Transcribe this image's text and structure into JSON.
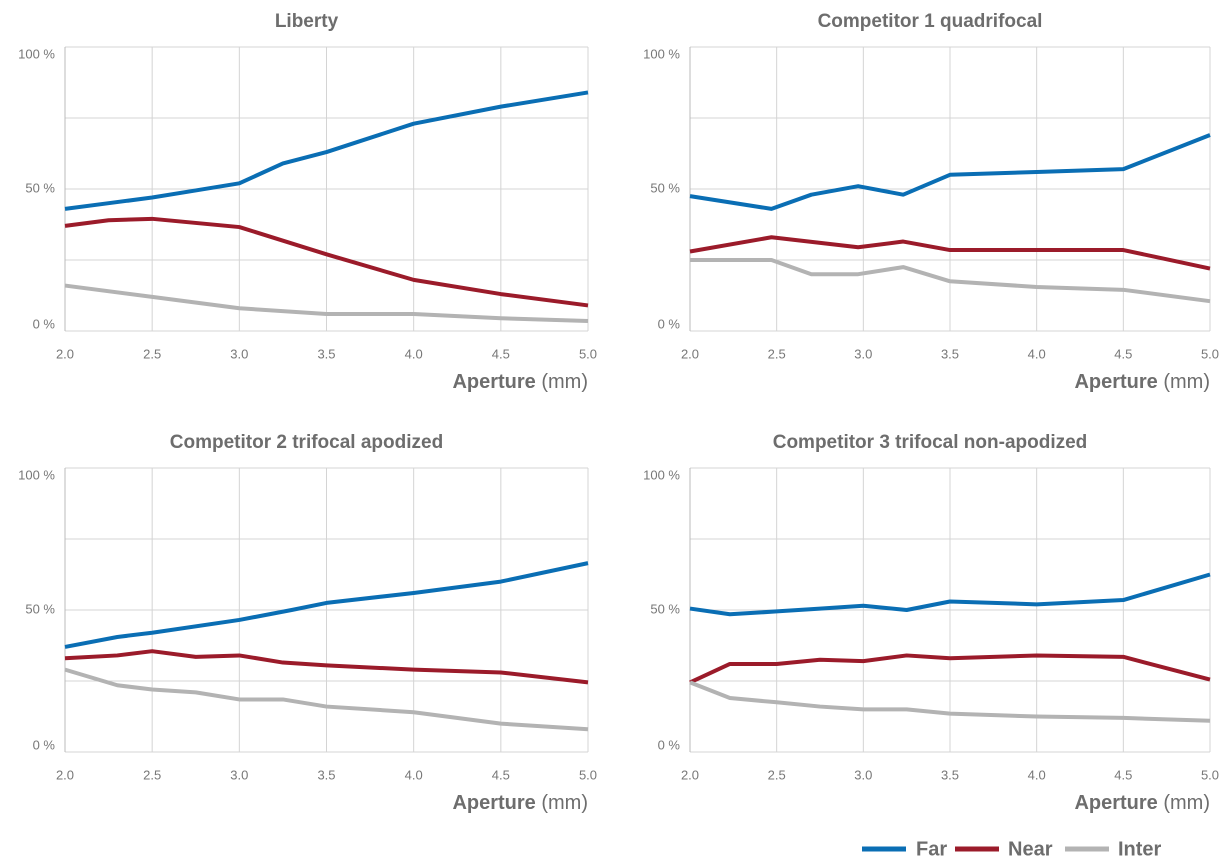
{
  "chart_data": [
    {
      "type": "line",
      "title": "Liberty",
      "x_label": "Aperture (mm)",
      "xlim": [
        2.0,
        5.0
      ],
      "ylim": [
        0,
        100
      ],
      "grid": true,
      "xticks": [
        {
          "value": 2.0,
          "label": "2.0"
        },
        {
          "value": 2.5,
          "label": "2.5"
        },
        {
          "value": 3.0,
          "label": "3.0"
        },
        {
          "value": 3.5,
          "label": "3.5"
        },
        {
          "value": 4.0,
          "label": "4.0"
        },
        {
          "value": 4.5,
          "label": "4.5"
        },
        {
          "value": 5.0,
          "label": "5.0"
        }
      ],
      "yticks": [
        {
          "value": 0,
          "label": "0 %"
        },
        {
          "value": 25,
          "label": null
        },
        {
          "value": 50,
          "label": "50 %"
        },
        {
          "value": 75,
          "label": null
        },
        {
          "value": 100,
          "label": "100 %"
        }
      ],
      "series": [
        {
          "name": "Far",
          "color": "#0a6eb4",
          "x": [
            2.0,
            2.25,
            2.5,
            2.75,
            3.0,
            3.25,
            3.5,
            4.0,
            4.5,
            5.0
          ],
          "values": [
            43,
            45,
            47,
            49.5,
            52,
            59,
            63,
            73,
            79,
            84
          ]
        },
        {
          "name": "Near",
          "color": "#9b1b2a",
          "x": [
            2.0,
            2.25,
            2.5,
            3.0,
            3.5,
            4.0,
            4.5,
            5.0
          ],
          "values": [
            37,
            39,
            39.5,
            36.6,
            27,
            18,
            13,
            9
          ]
        },
        {
          "name": "Inter",
          "color": "#b3b3b3",
          "x": [
            2.0,
            2.5,
            3.0,
            3.5,
            4.0,
            4.5,
            5.0
          ],
          "values": [
            16,
            12,
            8,
            6,
            6,
            4.5,
            3.5
          ]
        }
      ]
    },
    {
      "type": "line",
      "title": "Competitor 1 quadrifocal",
      "x_label": "Aperture (mm)",
      "xlim": [
        2.0,
        5.0
      ],
      "ylim": [
        0,
        100
      ],
      "grid": true,
      "xticks": [
        {
          "value": 2.0,
          "label": "2.0"
        },
        {
          "value": 2.5,
          "label": "2.5"
        },
        {
          "value": 3.0,
          "label": "3.0"
        },
        {
          "value": 3.5,
          "label": "3.5"
        },
        {
          "value": 4.0,
          "label": "4.0"
        },
        {
          "value": 4.5,
          "label": "4.5"
        },
        {
          "value": 5.0,
          "label": "5.0"
        }
      ],
      "yticks": [
        {
          "value": 0,
          "label": "0 %"
        },
        {
          "value": 25,
          "label": null
        },
        {
          "value": 50,
          "label": "50 %"
        },
        {
          "value": 75,
          "label": null
        },
        {
          "value": 100,
          "label": "100 %"
        }
      ],
      "series": [
        {
          "name": "Far",
          "color": "#0a6eb4",
          "x": [
            2.0,
            2.47,
            2.7,
            2.97,
            3.23,
            3.5,
            4.0,
            4.5,
            5.0
          ],
          "values": [
            47.5,
            43,
            48,
            51,
            48,
            55,
            56,
            57,
            69
          ]
        },
        {
          "name": "Near",
          "color": "#9b1b2a",
          "x": [
            2.0,
            2.47,
            2.97,
            3.23,
            3.5,
            4.5,
            5.0
          ],
          "values": [
            28,
            33,
            29.5,
            31.5,
            28.5,
            28.5,
            22
          ]
        },
        {
          "name": "Inter",
          "color": "#b3b3b3",
          "x": [
            2.0,
            2.47,
            2.7,
            2.97,
            3.23,
            3.5,
            4.0,
            4.5,
            5.0
          ],
          "values": [
            25,
            25,
            20,
            20,
            22.5,
            17.5,
            15.5,
            14.5,
            10.5
          ]
        }
      ]
    },
    {
      "type": "line",
      "title": "Competitor 2 trifocal apodized",
      "x_label": "Aperture (mm)",
      "xlim": [
        2.0,
        5.0
      ],
      "ylim": [
        0,
        100
      ],
      "grid": true,
      "xticks": [
        {
          "value": 2.0,
          "label": "2.0"
        },
        {
          "value": 2.5,
          "label": "2.5"
        },
        {
          "value": 3.0,
          "label": "3.0"
        },
        {
          "value": 3.5,
          "label": "3.5"
        },
        {
          "value": 4.0,
          "label": "4.0"
        },
        {
          "value": 4.5,
          "label": "4.5"
        },
        {
          "value": 5.0,
          "label": "5.0"
        }
      ],
      "yticks": [
        {
          "value": 0,
          "label": "0 %"
        },
        {
          "value": 25,
          "label": null
        },
        {
          "value": 50,
          "label": "50 %"
        },
        {
          "value": 75,
          "label": null
        },
        {
          "value": 100,
          "label": "100 %"
        }
      ],
      "series": [
        {
          "name": "Far",
          "color": "#0a6eb4",
          "x": [
            2.0,
            2.3,
            2.5,
            3.0,
            3.3,
            3.5,
            4.0,
            4.5,
            5.0
          ],
          "values": [
            37,
            40.5,
            42,
            46.5,
            50,
            52.5,
            56,
            60,
            66.5
          ]
        },
        {
          "name": "Near",
          "color": "#9b1b2a",
          "x": [
            2.0,
            2.3,
            2.5,
            2.75,
            3.0,
            3.25,
            3.5,
            4.0,
            4.5,
            5.0
          ],
          "values": [
            33,
            34,
            35.5,
            33.5,
            34,
            31.5,
            30.5,
            29,
            28,
            24.5
          ]
        },
        {
          "name": "Inter",
          "color": "#b3b3b3",
          "x": [
            2.0,
            2.3,
            2.5,
            2.75,
            3.0,
            3.25,
            3.5,
            4.0,
            4.5,
            5.0
          ],
          "values": [
            29,
            23.5,
            22,
            21,
            18.5,
            18.5,
            16,
            14,
            10,
            8
          ]
        }
      ]
    },
    {
      "type": "line",
      "title": "Competitor 3 trifocal non-apodized",
      "x_label": "Aperture (mm)",
      "xlim": [
        2.0,
        5.0
      ],
      "ylim": [
        0,
        100
      ],
      "grid": true,
      "xticks": [
        {
          "value": 2.0,
          "label": "2.0"
        },
        {
          "value": 2.5,
          "label": "2.5"
        },
        {
          "value": 3.0,
          "label": "3.0"
        },
        {
          "value": 3.5,
          "label": "3.5"
        },
        {
          "value": 4.0,
          "label": "4.0"
        },
        {
          "value": 4.5,
          "label": "4.5"
        },
        {
          "value": 5.0,
          "label": "5.0"
        }
      ],
      "yticks": [
        {
          "value": 0,
          "label": "0 %"
        },
        {
          "value": 25,
          "label": null
        },
        {
          "value": 50,
          "label": "50 %"
        },
        {
          "value": 75,
          "label": null
        },
        {
          "value": 100,
          "label": "100 %"
        }
      ],
      "series": [
        {
          "name": "Far",
          "color": "#0a6eb4",
          "x": [
            2.0,
            2.23,
            2.5,
            2.75,
            3.0,
            3.25,
            3.5,
            4.0,
            4.5,
            5.0
          ],
          "values": [
            50.5,
            48.5,
            49.5,
            50.5,
            51.5,
            50,
            53,
            52,
            53.5,
            62.5
          ]
        },
        {
          "name": "Near",
          "color": "#9b1b2a",
          "x": [
            2.0,
            2.23,
            2.5,
            2.75,
            3.0,
            3.25,
            3.5,
            4.0,
            4.5,
            5.0
          ],
          "values": [
            24.5,
            31,
            31,
            32.5,
            32,
            34,
            33,
            34,
            33.5,
            25.5
          ]
        },
        {
          "name": "Inter",
          "color": "#b3b3b3",
          "x": [
            2.0,
            2.23,
            2.5,
            2.75,
            3.0,
            3.25,
            3.5,
            4.0,
            4.5,
            5.0
          ],
          "values": [
            24.5,
            19,
            17.5,
            16,
            15,
            15,
            13.5,
            12.5,
            12,
            11
          ]
        }
      ]
    }
  ]
}
